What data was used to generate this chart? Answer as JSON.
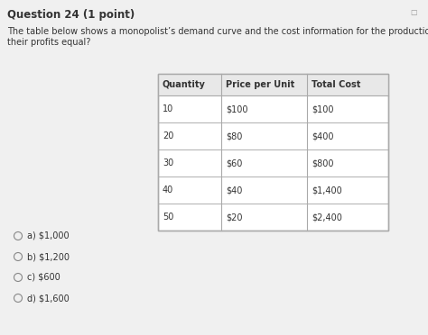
{
  "title": "Question 24 (1 point)",
  "description_line1": "The table below shows a monopolist’s demand curve and the cost information for the production of its good. What will",
  "description_line2": "their profits equal?",
  "table_headers": [
    "Quantity",
    "Price per Unit",
    "Total Cost"
  ],
  "table_rows": [
    [
      "10",
      "$100",
      "$100"
    ],
    [
      "20",
      "$80",
      "$400"
    ],
    [
      "30",
      "$60",
      "$800"
    ],
    [
      "40",
      "$40",
      "$1,400"
    ],
    [
      "50",
      "$20",
      "$2,400"
    ]
  ],
  "options": [
    "a) $1,000",
    "b) $1,200",
    "c) $600",
    "d) $1,600"
  ],
  "bg_color": "#f0f0f0",
  "table_bg": "#ffffff",
  "border_color": "#aaaaaa",
  "text_color": "#333333",
  "title_fontsize": 8.5,
  "body_fontsize": 7.0,
  "desc_fontsize": 7.0,
  "option_fontsize": 7.0
}
